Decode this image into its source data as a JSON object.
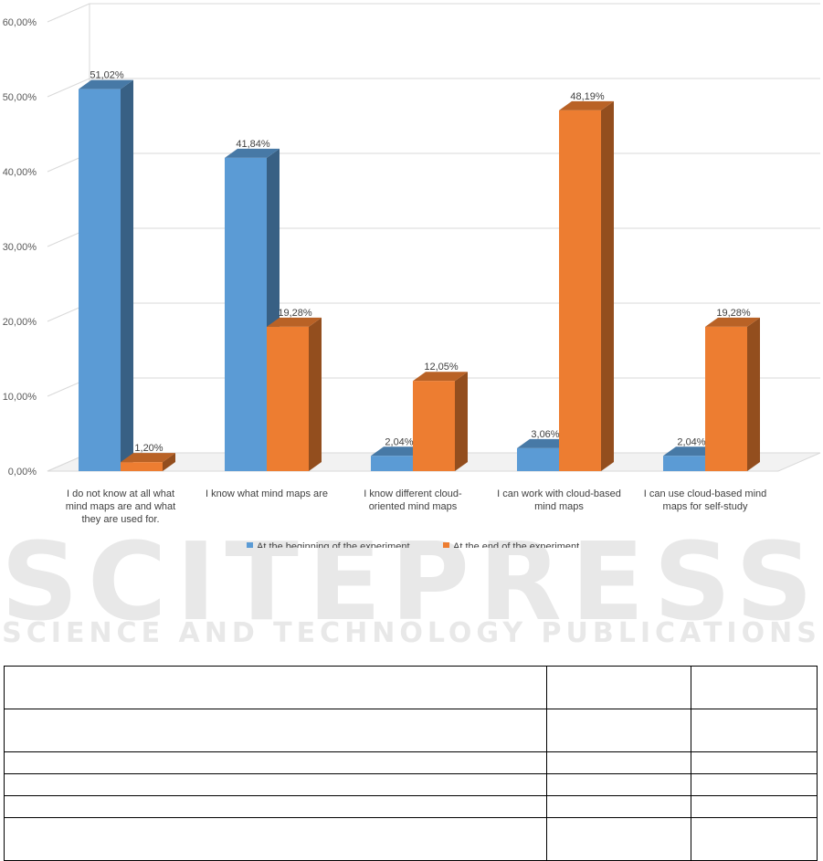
{
  "chart_data": {
    "type": "bar",
    "categories": [
      [
        "I do not know at all what",
        "mind maps are and what",
        "they are used for."
      ],
      [
        "I know what  mind maps are"
      ],
      [
        "I know different cloud-",
        "oriented  mind maps"
      ],
      [
        "I can work with cloud-based",
        "mind maps"
      ],
      [
        "I can use cloud-based  mind",
        "maps for self-study"
      ]
    ],
    "series": [
      {
        "name": "At the beginning of the experiment",
        "color": "#5b9bd5",
        "values": [
          51.02,
          41.84,
          2.04,
          3.06,
          2.04
        ],
        "labels": [
          "51,02%",
          "41,84%",
          "2,04%",
          "3,06%",
          "2,04%"
        ]
      },
      {
        "name": "At the end of the experiment",
        "color": "#ed7d31",
        "values": [
          1.2,
          19.28,
          12.05,
          48.19,
          19.28
        ],
        "labels": [
          "1,20%",
          "19,28%",
          "12,05%",
          "48,19%",
          "19,28%"
        ]
      }
    ],
    "y_ticks": [
      0,
      10,
      20,
      30,
      40,
      50,
      60
    ],
    "y_tick_labels": [
      "0,00%",
      "10,00%",
      "20,00%",
      "30,00%",
      "40,00%",
      "50,00%",
      "60,00%"
    ],
    "ylim": [
      0,
      60
    ],
    "grid": true,
    "legend": "bottom",
    "style": "3d-column",
    "title": "",
    "xlabel": "",
    "ylabel": ""
  },
  "watermark": {
    "main": "SCITEPRESS",
    "sub": "SCIENCE AND TECHNOLOGY PUBLICATIONS"
  },
  "table": {
    "rows": 6,
    "cols": 3
  }
}
